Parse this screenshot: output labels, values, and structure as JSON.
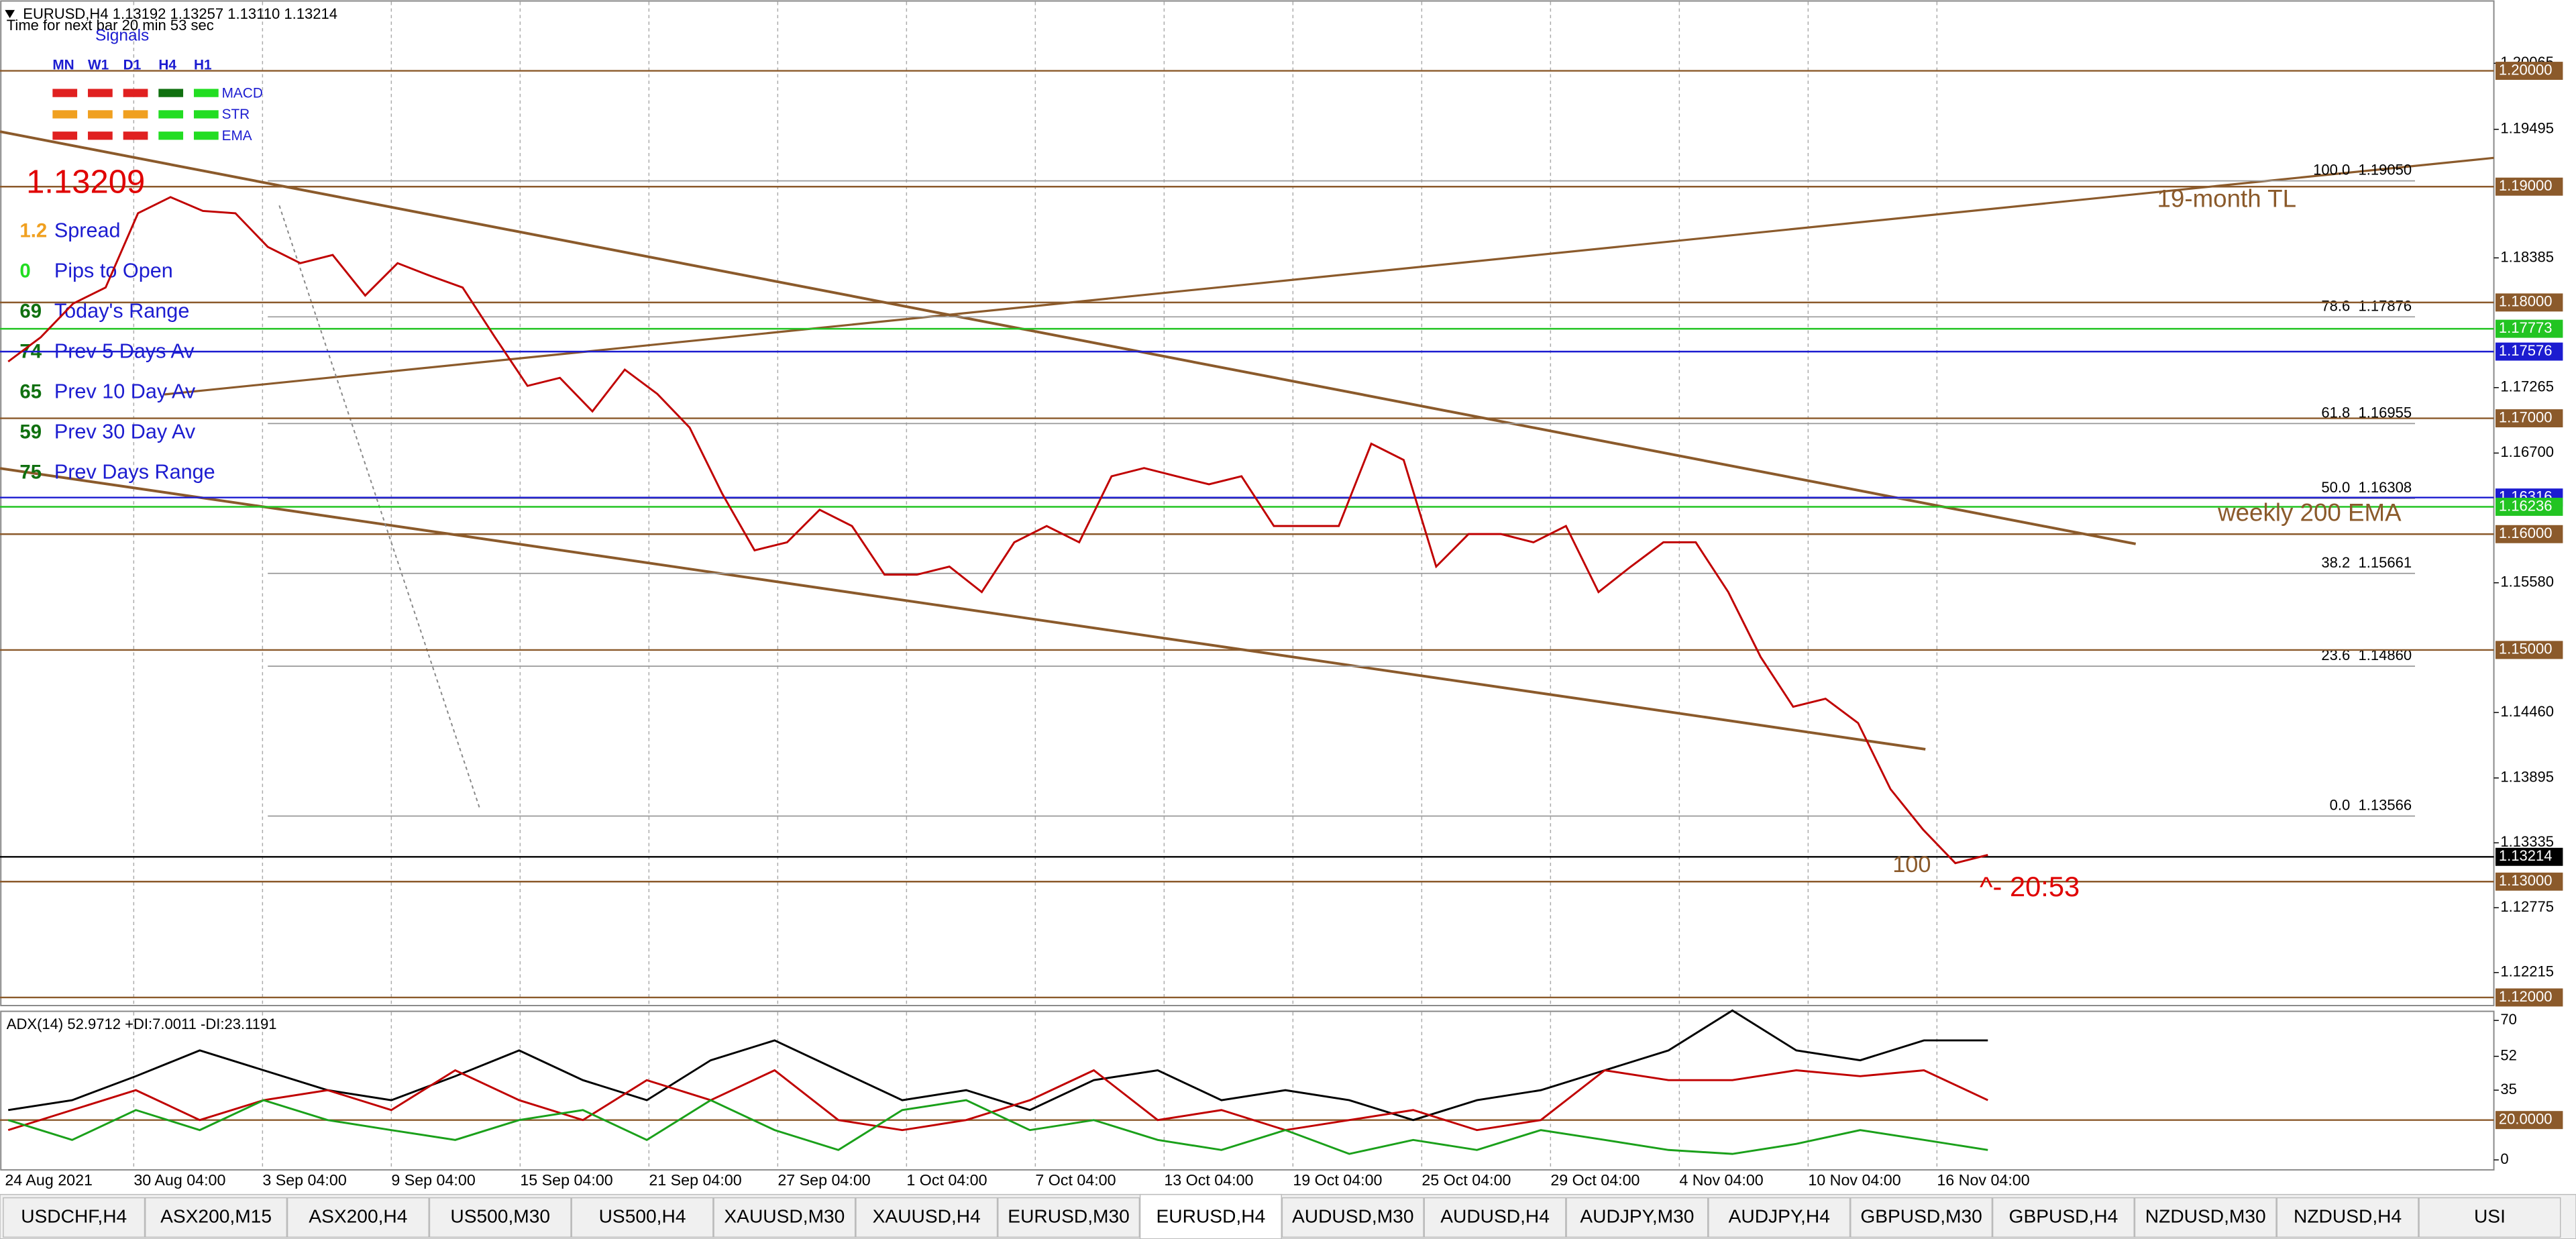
{
  "header": {
    "symbol_line": "EURUSD,H4  1.13192 1.13257 1.13110 1.13214",
    "timer": "Time for next bar 20 min 53 sec"
  },
  "signals": {
    "title": "Signals",
    "timeframes": [
      "MN",
      "W1",
      "D1",
      "H4",
      "H1"
    ],
    "indicators": [
      "MACD",
      "STR",
      "EMA"
    ]
  },
  "stats": {
    "price": "1.13209",
    "rows": [
      {
        "value": 1.2,
        "label": "Spread"
      },
      {
        "value": 0,
        "label": "Pips to Open"
      },
      {
        "value": 69,
        "label": "Today's Range"
      },
      {
        "value": 74,
        "label": "Prev 5 Days Av"
      },
      {
        "value": 65,
        "label": "Prev 10 Day Av"
      },
      {
        "value": 59,
        "label": "Prev 30 Day Av"
      },
      {
        "value": 75,
        "label": "Prev Days Range"
      }
    ]
  },
  "chart_data": [
    {
      "type": "line",
      "series": [
        {
          "color": "#c00000",
          "values": [
            1.1749,
            1.177,
            1.1799,
            1.1813,
            1.1877,
            1.1891,
            1.1879,
            1.1877,
            1.1848,
            1.1834,
            1.1841,
            1.1806,
            1.1834,
            1.1823,
            1.1813,
            1.177,
            1.1728,
            1.1735,
            1.1706,
            1.1742,
            1.1721,
            1.1692,
            1.1635,
            1.1586,
            1.1593,
            1.1621,
            1.1607,
            1.1565,
            1.1565,
            1.1572,
            1.155,
            1.1593,
            1.1607,
            1.1593,
            1.165,
            1.1657,
            1.165,
            1.1643,
            1.165,
            1.1607,
            1.1607,
            1.1607,
            1.1678,
            1.1664,
            1.1572,
            1.16,
            1.16,
            1.1593,
            1.1607,
            1.155,
            1.1572,
            1.1593,
            1.1593,
            1.155,
            1.1494,
            1.1451,
            1.1458,
            1.1437,
            1.138,
            1.1345,
            1.1316,
            1.1323
          ]
        }
      ],
      "ylim": [
        1.1193,
        1.2061
      ],
      "yticks": [
        1.20065,
        1.19495,
        1.18385,
        1.17265,
        {
          "value": 1.167,
          "label": "1.16700"
        },
        {
          "value": 1.1558,
          "label": "1.15580"
        },
        {
          "value": 1.1446,
          "label": "1.14460"
        },
        1.13895,
        1.13335,
        1.12775,
        1.12215
      ],
      "price_levels": [
        {
          "value": 1.2,
          "label": "1.20000",
          "color": "#8b5a2b"
        },
        {
          "value": 1.19,
          "label": "1.19000",
          "color": "#8b5a2b"
        },
        {
          "value": 1.18,
          "label": "1.18000",
          "color": "#8b5a2b"
        },
        {
          "value": 1.17773,
          "label": "1.17773",
          "color": "#22c422"
        },
        {
          "value": 1.17576,
          "label": "1.17576",
          "color": "#1c1cd0"
        },
        {
          "value": 1.17,
          "label": "1.17000",
          "color": "#8b5a2b"
        },
        {
          "value": 1.16316,
          "label": "1.16316",
          "color": "#1c1cd0"
        },
        {
          "value": 1.16236,
          "label": "1.16236",
          "color": "#22c422"
        },
        {
          "value": 1.16,
          "label": "1.16000",
          "color": "#8b5a2b"
        },
        {
          "value": 1.15,
          "label": "1.15000",
          "color": "#8b5a2b"
        },
        {
          "value": 1.13214,
          "label": "1.13214",
          "color": "#000000"
        },
        {
          "value": 1.13,
          "label": "1.13000",
          "color": "#8b5a2b"
        },
        {
          "value": 1.12,
          "label": "1.12000",
          "color": "#8b5a2b"
        }
      ],
      "fib_levels": [
        {
          "value": 1.1905,
          "label": "100.0  1.19050"
        },
        {
          "value": 1.17876,
          "label": "78.6  1.17876"
        },
        {
          "value": 1.16955,
          "label": "61.8  1.16955"
        },
        {
          "value": 1.16308,
          "label": "50.0  1.16308"
        },
        {
          "value": 1.15661,
          "label": "38.2  1.15661"
        },
        {
          "value": 1.1486,
          "label": "23.6  1.14860"
        },
        {
          "value": 1.13566,
          "label": "0.0  1.13566"
        }
      ],
      "annotations": {
        "trendline": "19-month TL",
        "ema": "weekly 200 EMA",
        "count": 100,
        "countdown": "^- 20:53"
      },
      "time_labels": [
        "24 Aug 2021",
        "30 Aug 04:00",
        "3 Sep 04:00",
        "9 Sep 04:00",
        "15 Sep 04:00",
        "21 Sep 04:00",
        "27 Sep 04:00",
        "1 Oct 04:00",
        "7 Oct 04:00",
        "13 Oct 04:00",
        "19 Oct 04:00",
        "25 Oct 04:00",
        "29 Oct 04:00",
        "4 Nov 04:00",
        "10 Nov 04:00",
        "16 Nov 04:00"
      ]
    },
    {
      "type": "line",
      "title": "ADX(14) 52.9712 +DI:7.0011 -DI:23.1191",
      "series": [
        {
          "color": "#000000",
          "values": [
            25,
            30,
            42,
            55,
            45,
            35,
            30,
            42,
            55,
            40,
            30,
            50,
            60,
            45,
            30,
            35,
            25,
            40,
            45,
            30,
            35,
            30,
            20,
            30,
            35,
            45,
            55,
            75,
            55,
            50,
            60,
            60
          ]
        },
        {
          "color": "#c00000",
          "values": [
            15,
            25,
            35,
            20,
            30,
            35,
            25,
            45,
            30,
            20,
            40,
            30,
            45,
            20,
            15,
            20,
            30,
            45,
            20,
            25,
            15,
            20,
            25,
            15,
            20,
            45,
            40,
            40,
            45,
            42,
            45,
            30
          ]
        },
        {
          "color": "#1aa01a",
          "values": [
            20,
            10,
            25,
            15,
            30,
            20,
            15,
            10,
            20,
            25,
            10,
            30,
            15,
            5,
            25,
            30,
            15,
            20,
            10,
            5,
            15,
            3,
            10,
            5,
            15,
            10,
            5,
            3,
            8,
            15,
            10,
            5
          ]
        }
      ],
      "ylim": [
        -5,
        75
      ],
      "yticks": [
        70,
        52,
        35,
        0
      ],
      "level": {
        "value": 20,
        "label": "20.0000"
      }
    }
  ],
  "tabs": [
    "USDCHF,H4",
    "ASX200,M15",
    "ASX200,H4",
    "US500,M30",
    "US500,H4",
    "XAUUSD,M30",
    "XAUUSD,H4",
    "EURUSD,M30",
    "EURUSD,H4",
    "AUDUSD,M30",
    "AUDUSD,H4",
    "AUDJPY,M30",
    "AUDJPY,H4",
    "GBPUSD,M30",
    "GBPUSD,H4",
    "NZDUSD,M30",
    "NZDUSD,H4",
    "USI"
  ],
  "active_tab": 8
}
